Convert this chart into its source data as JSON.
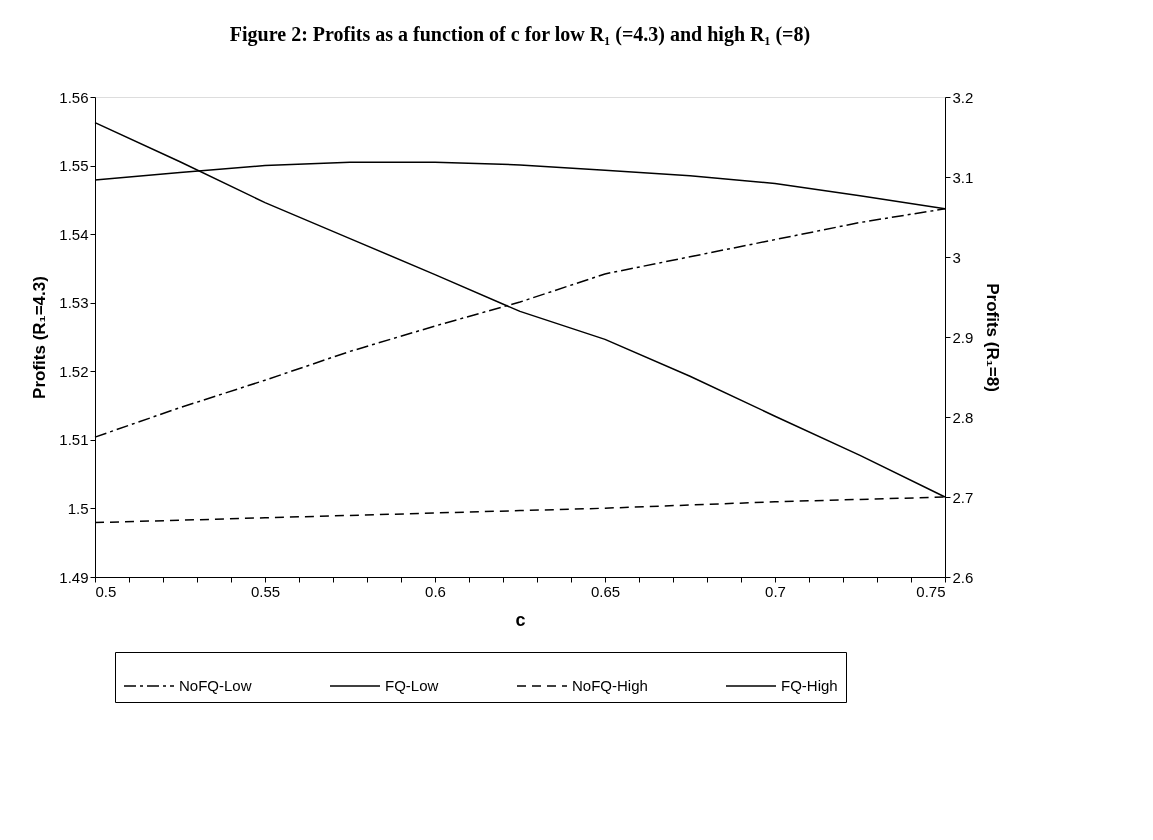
{
  "chart_data": {
    "type": "line",
    "title": "Figure 2: Profits as a function of c  for low R₁  (=4.3) and high R₁  (=8)",
    "xlabel": "c",
    "ylabel": "Profits (R₁=4.3)",
    "y2label": "Profits (R₁=8)",
    "x": [
      0.5,
      0.525,
      0.55,
      0.575,
      0.6,
      0.625,
      0.65,
      0.675,
      0.7,
      0.725,
      0.75
    ],
    "series": [
      {
        "name": "NoFQ-Low",
        "color": "#000000",
        "line_style": "dashdot",
        "values": [
          1.5104,
          1.5147,
          1.5187,
          1.5229,
          1.5266,
          1.5301,
          1.5342,
          1.5367,
          1.5392,
          1.5417,
          1.5437
        ]
      },
      {
        "name": "FQ-Low",
        "color": "#000000",
        "line_style": "solid",
        "values": [
          1.5479,
          1.549,
          1.55,
          1.5505,
          1.5505,
          1.5501,
          1.5493,
          1.5485,
          1.5474,
          1.5456,
          1.5437
        ]
      },
      {
        "name": "NoFQ-High",
        "color": "#000000",
        "line_style": "dashed",
        "axis": "y2",
        "values": [
          2.668,
          2.671,
          2.674,
          2.677,
          2.68,
          2.683,
          2.686,
          2.69,
          2.694,
          2.697,
          2.7
        ]
      },
      {
        "name": "FQ-High",
        "color": "#000000",
        "line_style": "solid",
        "axis": "y2",
        "values": [
          3.168,
          3.119,
          3.068,
          3.023,
          2.978,
          2.932,
          2.897,
          2.851,
          2.801,
          2.752,
          2.7
        ]
      }
    ],
    "xlim": [
      0.5,
      0.75
    ],
    "xticks": [
      0.5,
      {
        "value": 0.51,
        "label": null
      },
      {
        "value": 0.52,
        "label": null
      },
      {
        "value": 0.53,
        "label": null
      },
      {
        "value": 0.54,
        "label": null
      },
      0.55,
      {
        "value": 0.56,
        "label": null
      },
      {
        "value": 0.57,
        "label": null
      },
      {
        "value": 0.58,
        "label": null
      },
      {
        "value": 0.59,
        "label": null
      },
      0.6,
      {
        "value": 0.61,
        "label": null
      },
      {
        "value": 0.62,
        "label": null
      },
      {
        "value": 0.63,
        "label": null
      },
      {
        "value": 0.64,
        "label": null
      },
      0.65,
      {
        "value": 0.66,
        "label": null
      },
      {
        "value": 0.67,
        "label": null
      },
      {
        "value": 0.68,
        "label": null
      },
      {
        "value": 0.69,
        "label": null
      },
      0.7,
      {
        "value": 0.71,
        "label": null
      },
      {
        "value": 0.72,
        "label": null
      },
      {
        "value": 0.73,
        "label": null
      },
      {
        "value": 0.74,
        "label": null
      },
      0.75
    ],
    "ylim": [
      1.49,
      1.56
    ],
    "yticks": [
      1.49,
      1.5,
      1.51,
      1.52,
      1.53,
      1.54,
      1.55,
      1.56
    ],
    "y2lim": [
      2.6,
      3.2
    ],
    "y2ticks": [
      2.6,
      2.7,
      2.8,
      2.9,
      3,
      3.1,
      3.2
    ],
    "grid": false,
    "legend": "bottom",
    "marker": "none"
  }
}
